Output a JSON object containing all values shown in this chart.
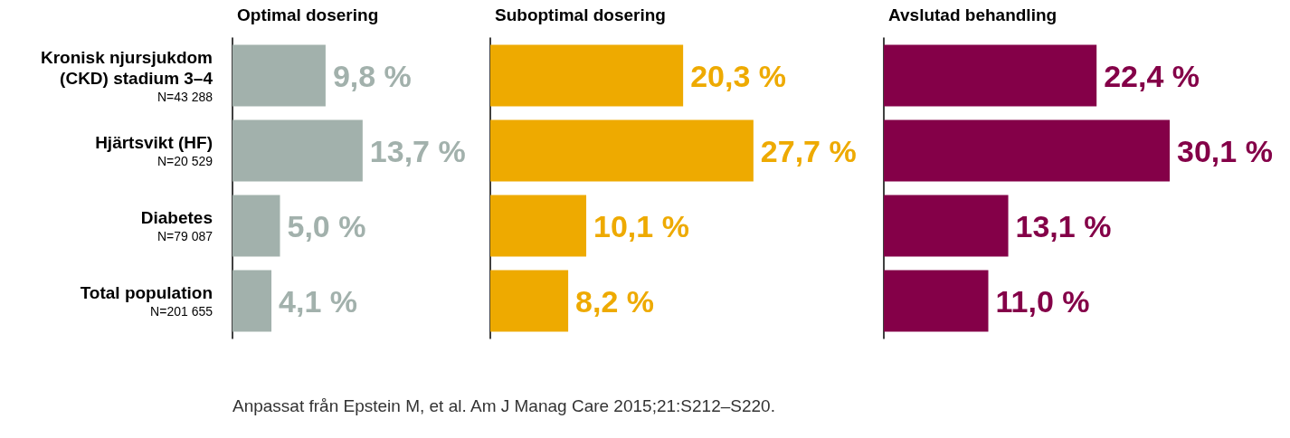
{
  "chart_data": [
    {
      "type": "bar",
      "orientation": "horizontal",
      "title": "Optimal dosering",
      "categories": [
        "Kronisk njursjukdom\n(CKD) stadium 3–4\nN=43 288",
        "Hjärtsvikt (HF)\nN=20 529",
        "Diabetes\nN=79 087",
        "Total population\nN=201 655"
      ],
      "values": [
        9.8,
        13.7,
        5.0,
        4.1
      ],
      "value_labels": [
        "9,8 %",
        "13,7 %",
        "5,0 %",
        "4,1 %"
      ],
      "color": "#a2b1ac",
      "tick_labels": "y",
      "annotations": [
        "Anpassat från Epstein M, et al. Am J Manag Care 2015;21:S212–S220."
      ]
    },
    {
      "type": "bar",
      "orientation": "horizontal",
      "title": "Suboptimal dosering",
      "categories": [
        null,
        null,
        null,
        null
      ],
      "values": [
        20.3,
        27.7,
        10.1,
        8.2
      ],
      "value_labels": [
        "20,3 %",
        "27,7 %",
        "10,1 %",
        "8,2 %"
      ],
      "color": "#eeaa00",
      "tick_labels": false
    },
    {
      "type": "bar",
      "orientation": "horizontal",
      "title": "Avslutad behandling",
      "categories": [
        null,
        null,
        null,
        null
      ],
      "values": [
        22.4,
        30.1,
        13.1,
        11.0
      ],
      "value_labels": [
        "22,4 %",
        "30,1 %",
        "13,1 %",
        "11,0 %"
      ],
      "color": "#840048",
      "tick_labels": false
    }
  ]
}
